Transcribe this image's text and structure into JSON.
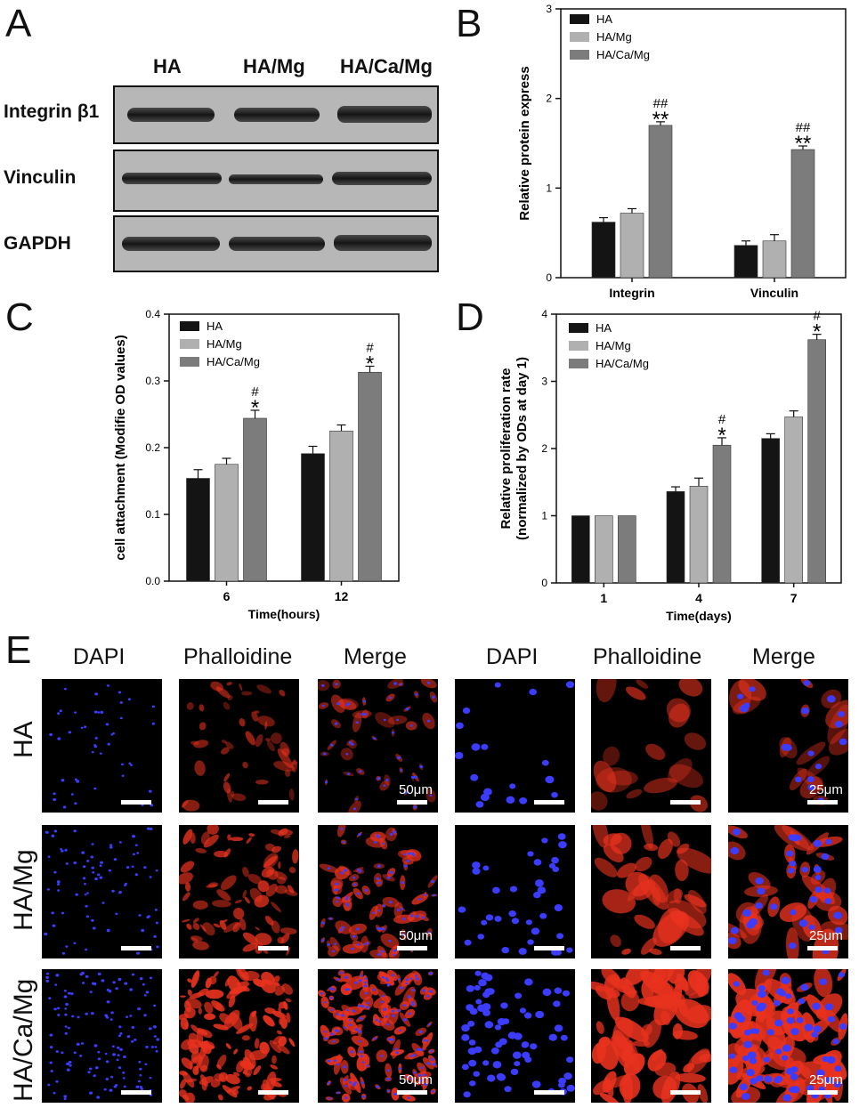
{
  "panels": {
    "A": "A",
    "B": "B",
    "C": "C",
    "D": "D",
    "E": "E"
  },
  "western_blot": {
    "columns": [
      "HA",
      "HA/Mg",
      "HA/Ca/Mg"
    ],
    "rows": [
      "Integrin β1",
      "Vinculin",
      "GAPDH"
    ]
  },
  "chart_data": [
    {
      "panel": "B",
      "type": "bar",
      "categories": [
        "Integrin",
        "Vinculin"
      ],
      "series": [
        {
          "name": "HA",
          "values": [
            0.62,
            0.36
          ],
          "errors": [
            0.05,
            0.05
          ]
        },
        {
          "name": "HA/Mg",
          "values": [
            0.72,
            0.41
          ],
          "errors": [
            0.05,
            0.07
          ]
        },
        {
          "name": "HA/Ca/Mg",
          "values": [
            1.7,
            1.43
          ],
          "errors": [
            0.04,
            0.04
          ]
        }
      ],
      "annotations": [
        {
          "category": "Integrin",
          "series": "HA/Ca/Mg",
          "lines": [
            "##",
            "**"
          ]
        },
        {
          "category": "Vinculin",
          "series": "HA/Ca/Mg",
          "lines": [
            "##",
            "**"
          ]
        }
      ],
      "ylabel": "Relative protein express",
      "xlabel": "",
      "ylim": [
        0,
        3
      ],
      "yticks": [
        "0",
        "1",
        "2",
        "3"
      ],
      "colors": [
        "#141414",
        "#b0b0b0",
        "#7c7c7c"
      ],
      "legend": "top-left"
    },
    {
      "panel": "C",
      "type": "bar",
      "categories": [
        "6",
        "12"
      ],
      "series": [
        {
          "name": "HA",
          "values": [
            0.154,
            0.191
          ],
          "errors": [
            0.013,
            0.011
          ]
        },
        {
          "name": "HA/Mg",
          "values": [
            0.175,
            0.225
          ],
          "errors": [
            0.009,
            0.009
          ]
        },
        {
          "name": "HA/Ca/Mg",
          "values": [
            0.244,
            0.313
          ],
          "errors": [
            0.012,
            0.009
          ]
        }
      ],
      "annotations": [
        {
          "category": "6",
          "series": "HA/Ca/Mg",
          "lines": [
            "#",
            "*"
          ]
        },
        {
          "category": "12",
          "series": "HA/Ca/Mg",
          "lines": [
            "#",
            "*"
          ]
        }
      ],
      "ylabel": "cell attachment (Modifie OD values)",
      "xlabel": "Time(hours)",
      "ylim": [
        0,
        0.4
      ],
      "yticks": [
        "0.0",
        "0.1",
        "0.2",
        "0.3",
        "0.4"
      ],
      "colors": [
        "#141414",
        "#b0b0b0",
        "#7c7c7c"
      ],
      "legend": "top-left"
    },
    {
      "panel": "D",
      "type": "bar",
      "categories": [
        "1",
        "4",
        "7"
      ],
      "series": [
        {
          "name": "HA",
          "values": [
            1.0,
            1.36,
            2.15
          ],
          "errors": [
            0,
            0.07,
            0.07
          ]
        },
        {
          "name": "HA/Mg",
          "values": [
            1.0,
            1.44,
            2.47
          ],
          "errors": [
            0,
            0.12,
            0.09
          ]
        },
        {
          "name": "HA/Ca/Mg",
          "values": [
            1.0,
            2.05,
            3.62
          ],
          "errors": [
            0,
            0.11,
            0.08
          ]
        }
      ],
      "annotations": [
        {
          "category": "4",
          "series": "HA/Ca/Mg",
          "lines": [
            "#",
            "*"
          ]
        },
        {
          "category": "7",
          "series": "HA/Ca/Mg",
          "lines": [
            "#",
            "*"
          ]
        }
      ],
      "ylabel": [
        "Relative proliferation rate",
        "(normalized by ODs at day 1)"
      ],
      "xlabel": "Time(days)",
      "ylim": [
        0,
        4
      ],
      "yticks": [
        "0",
        "1",
        "2",
        "3",
        "4"
      ],
      "colors": [
        "#141414",
        "#b0b0b0",
        "#7c7c7c"
      ],
      "legend": "top-left"
    }
  ],
  "microscopy": {
    "headers": [
      "DAPI",
      "Phalloidine",
      "Merge",
      "DAPI",
      "Phalloidine",
      "Merge"
    ],
    "rows": [
      "HA",
      "HA/Mg",
      "HA/Ca/Mg"
    ],
    "scale_left": "50μm",
    "scale_right": "25μm"
  }
}
